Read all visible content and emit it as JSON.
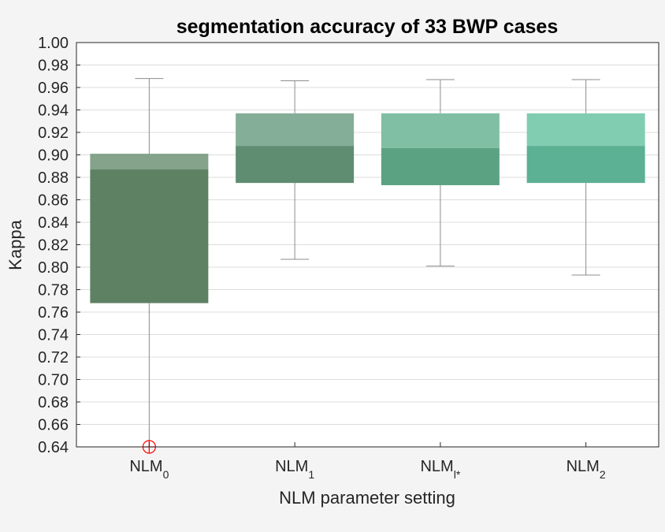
{
  "chart_data": {
    "type": "box",
    "title": "segmentation accuracy of 33 BWP cases",
    "xlabel": "NLM parameter setting",
    "ylabel": "Kappa",
    "ylim": [
      0.64,
      1.0
    ],
    "yticks": [
      "0.64",
      "0.66",
      "0.68",
      "0.70",
      "0.72",
      "0.74",
      "0.76",
      "0.78",
      "0.80",
      "0.82",
      "0.84",
      "0.86",
      "0.88",
      "0.90",
      "0.92",
      "0.94",
      "0.96",
      "0.98",
      "1.00"
    ],
    "grid": true,
    "categories": [
      {
        "base": "NLM",
        "sub": "0"
      },
      {
        "base": "NLM",
        "sub": "1"
      },
      {
        "base": "NLM",
        "sub": "l*"
      },
      {
        "base": "NLM",
        "sub": "2"
      }
    ],
    "boxes": [
      {
        "whisker_low": 0.64,
        "q1": 0.768,
        "median": 0.887,
        "q3": 0.901,
        "whisker_high": 0.968,
        "outliers": [
          0.64
        ],
        "color_lower": "#5e8063",
        "color_upper": "#84a38a"
      },
      {
        "whisker_low": 0.807,
        "q1": 0.875,
        "median": 0.908,
        "q3": 0.937,
        "whisker_high": 0.966,
        "outliers": [],
        "color_lower": "#5f8d72",
        "color_upper": "#84ae97"
      },
      {
        "whisker_low": 0.801,
        "q1": 0.873,
        "median": 0.906,
        "q3": 0.937,
        "whisker_high": 0.967,
        "outliers": [],
        "color_lower": "#5ba283",
        "color_upper": "#80bfa3"
      },
      {
        "whisker_low": 0.793,
        "q1": 0.875,
        "median": 0.908,
        "q3": 0.937,
        "whisker_high": 0.967,
        "outliers": [],
        "color_lower": "#5cb093",
        "color_upper": "#80cdb1"
      }
    ],
    "outlier_color": "#ff0000"
  }
}
